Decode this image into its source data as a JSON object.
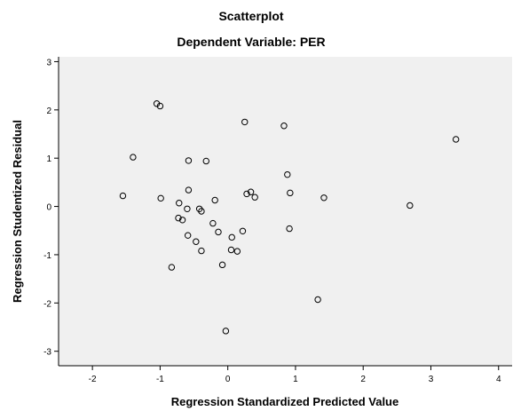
{
  "chart_data": {
    "type": "scatter",
    "title": "Scatterplot",
    "subtitle": "Dependent Variable: PER",
    "xlabel": "Regression Standardized Predicted Value",
    "ylabel": "Regression Studentized Residual",
    "xlim": [
      -2.5,
      4.2
    ],
    "ylim": [
      -3.3,
      3.1
    ],
    "x_ticks": [
      -2,
      -1,
      0,
      1,
      2,
      3,
      4
    ],
    "y_ticks": [
      -3,
      -2,
      -1,
      0,
      1,
      2,
      3
    ],
    "x_tick_labels": [
      "-2",
      "-1",
      "0",
      "1",
      "2",
      "3",
      "4"
    ],
    "y_tick_labels": [
      "-3",
      "-2",
      "-1",
      "0",
      "1",
      "2",
      "3"
    ],
    "grid": false,
    "plot_background": "#f0f0f0",
    "marker_color": "#000000",
    "marker_style": "hollow-circle",
    "points": [
      {
        "x": -1.05,
        "y": 2.13
      },
      {
        "x": -1.0,
        "y": 2.08
      },
      {
        "x": 0.25,
        "y": 1.75
      },
      {
        "x": 0.83,
        "y": 1.67
      },
      {
        "x": 3.37,
        "y": 1.39
      },
      {
        "x": -1.4,
        "y": 1.02
      },
      {
        "x": -0.58,
        "y": 0.95
      },
      {
        "x": -0.32,
        "y": 0.94
      },
      {
        "x": 0.88,
        "y": 0.66
      },
      {
        "x": -0.58,
        "y": 0.34
      },
      {
        "x": 0.34,
        "y": 0.3
      },
      {
        "x": 0.28,
        "y": 0.26
      },
      {
        "x": 0.92,
        "y": 0.28
      },
      {
        "x": -1.55,
        "y": 0.22
      },
      {
        "x": -0.99,
        "y": 0.17
      },
      {
        "x": 0.4,
        "y": 0.19
      },
      {
        "x": 1.42,
        "y": 0.18
      },
      {
        "x": -0.19,
        "y": 0.13
      },
      {
        "x": -0.72,
        "y": 0.07
      },
      {
        "x": -0.6,
        "y": -0.05
      },
      {
        "x": -0.42,
        "y": -0.05
      },
      {
        "x": -0.39,
        "y": -0.1
      },
      {
        "x": 2.69,
        "y": 0.02
      },
      {
        "x": -0.73,
        "y": -0.24
      },
      {
        "x": -0.67,
        "y": -0.28
      },
      {
        "x": -0.22,
        "y": -0.35
      },
      {
        "x": -0.14,
        "y": -0.53
      },
      {
        "x": 0.22,
        "y": -0.51
      },
      {
        "x": 0.91,
        "y": -0.46
      },
      {
        "x": -0.59,
        "y": -0.6
      },
      {
        "x": 0.06,
        "y": -0.64
      },
      {
        "x": -0.47,
        "y": -0.73
      },
      {
        "x": -0.39,
        "y": -0.92
      },
      {
        "x": 0.05,
        "y": -0.9
      },
      {
        "x": 0.14,
        "y": -0.93
      },
      {
        "x": -0.08,
        "y": -1.21
      },
      {
        "x": -0.83,
        "y": -1.26
      },
      {
        "x": 1.33,
        "y": -1.93
      },
      {
        "x": -0.03,
        "y": -2.58
      }
    ]
  }
}
